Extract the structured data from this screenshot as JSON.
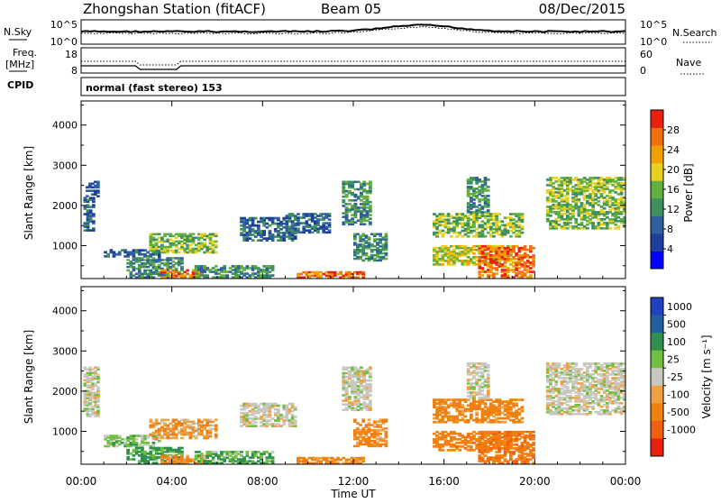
{
  "header": {
    "station": "Zhongshan Station (fitACF)",
    "beam": "Beam 05",
    "date": "08/Dec/2015"
  },
  "top_panel": {
    "left_label": "N.Sky",
    "left_ticks": [
      "10^5",
      "10^0"
    ],
    "right_label": "N.Search",
    "right_ticks": [
      "10^5",
      "10^0"
    ]
  },
  "freq_panel": {
    "left_label_1": "Freq.",
    "left_label_2": "[MHz]",
    "left_ticks": [
      "18",
      "8"
    ],
    "right_label": "Nave",
    "right_ticks": [
      "60",
      "0"
    ],
    "cpid_label": "CPID",
    "mode": "normal (fast stereo) 153"
  },
  "colors": {
    "power": [
      "#0000ff",
      "#1d3f9b",
      "#2f5f9f",
      "#3f8f5f",
      "#5fb040",
      "#e8d020",
      "#f0a000",
      "#f07010",
      "#e82010"
    ],
    "velocity_pos": [
      "#2040c0",
      "#2060a0",
      "#2f8f4f",
      "#70c040"
    ],
    "velocity_gray": "#c8c8c0",
    "velocity_neg": [
      "#f0a040",
      "#f08010",
      "#f06010",
      "#e82010"
    ]
  },
  "chart_data": [
    {
      "type": "heatmap",
      "name": "Power",
      "ylabel": "Slant Range [km]",
      "yticks": [
        1000,
        2000,
        3000,
        4000
      ],
      "ylim": [
        180,
        4600
      ],
      "xlim": [
        0,
        24
      ],
      "colorbar": {
        "label": "Power [dB]",
        "ticks": [
          4,
          8,
          12,
          16,
          20,
          24,
          28
        ],
        "range": [
          0,
          32
        ]
      },
      "regions": [
        {
          "t0": 0.1,
          "t1": 0.6,
          "r0": 1350,
          "r1": 2200,
          "level": 2
        },
        {
          "t0": 0.2,
          "t1": 0.8,
          "r0": 2200,
          "r1": 2600,
          "level": 1
        },
        {
          "t0": 1.0,
          "t1": 3.5,
          "r0": 700,
          "r1": 900,
          "level": 2
        },
        {
          "t0": 2.0,
          "t1": 4.5,
          "r0": 180,
          "r1": 700,
          "level": 3
        },
        {
          "t0": 3.5,
          "t1": 5.5,
          "r0": 180,
          "r1": 400,
          "level": 7
        },
        {
          "t0": 3.0,
          "t1": 6.0,
          "r0": 800,
          "r1": 1300,
          "level": 4
        },
        {
          "t0": 5.0,
          "t1": 8.5,
          "r0": 180,
          "r1": 500,
          "level": 3
        },
        {
          "t0": 7.0,
          "t1": 9.5,
          "r0": 1100,
          "r1": 1700,
          "level": 2
        },
        {
          "t0": 9.5,
          "t1": 12.5,
          "r0": 180,
          "r1": 350,
          "level": 7
        },
        {
          "t0": 9.0,
          "t1": 11.0,
          "r0": 1300,
          "r1": 1800,
          "level": 2
        },
        {
          "t0": 11.5,
          "t1": 12.8,
          "r0": 1500,
          "r1": 2600,
          "level": 3
        },
        {
          "t0": 12.0,
          "t1": 13.5,
          "r0": 600,
          "r1": 1300,
          "level": 3
        },
        {
          "t0": 15.5,
          "t1": 19.0,
          "r0": 500,
          "r1": 1000,
          "level": 5
        },
        {
          "t0": 17.5,
          "t1": 20.0,
          "r0": 180,
          "r1": 1000,
          "level": 7
        },
        {
          "t0": 15.5,
          "t1": 19.5,
          "r0": 1200,
          "r1": 1800,
          "level": 4
        },
        {
          "t0": 17.0,
          "t1": 18.0,
          "r0": 1800,
          "r1": 2700,
          "level": 3
        },
        {
          "t0": 20.5,
          "t1": 24.0,
          "r0": 1400,
          "r1": 2700,
          "level": 4
        }
      ]
    },
    {
      "type": "heatmap",
      "name": "Velocity",
      "ylabel": "Slant Range [km]",
      "yticks": [
        1000,
        2000,
        3000,
        4000
      ],
      "ylim": [
        180,
        4600
      ],
      "xlim": [
        0,
        24
      ],
      "xticks": [
        "00:00",
        "04:00",
        "08:00",
        "12:00",
        "16:00",
        "20:00",
        "00:00"
      ],
      "xlabel": "Time UT",
      "colorbar": {
        "label": "Velocity [m s⁻¹]",
        "ticks": [
          1000,
          500,
          100,
          25,
          -25,
          -100,
          -500,
          -1000
        ]
      },
      "regions": [
        {
          "t0": 0.1,
          "t1": 0.8,
          "r0": 1350,
          "r1": 2600,
          "vel": 0
        },
        {
          "t0": 1.0,
          "t1": 3.5,
          "r0": 600,
          "r1": 900,
          "vel": 50
        },
        {
          "t0": 2.0,
          "t1": 4.5,
          "r0": 180,
          "r1": 600,
          "vel": 150
        },
        {
          "t0": 3.5,
          "t1": 5.5,
          "r0": 180,
          "r1": 400,
          "vel": -150
        },
        {
          "t0": 3.0,
          "t1": 6.0,
          "r0": 800,
          "r1": 1300,
          "vel": -80
        },
        {
          "t0": 5.0,
          "t1": 8.5,
          "r0": 180,
          "r1": 500,
          "vel": 100
        },
        {
          "t0": 7.0,
          "t1": 9.5,
          "r0": 1100,
          "r1": 1700,
          "vel": 0
        },
        {
          "t0": 9.5,
          "t1": 12.5,
          "r0": 180,
          "r1": 350,
          "vel": -200
        },
        {
          "t0": 11.5,
          "t1": 12.8,
          "r0": 1500,
          "r1": 2600,
          "vel": 0
        },
        {
          "t0": 12.0,
          "t1": 13.5,
          "r0": 600,
          "r1": 1300,
          "vel": -150
        },
        {
          "t0": 15.5,
          "t1": 19.0,
          "r0": 500,
          "r1": 1000,
          "vel": -300
        },
        {
          "t0": 17.5,
          "t1": 20.0,
          "r0": 180,
          "r1": 1000,
          "vel": -400
        },
        {
          "t0": 15.5,
          "t1": 19.5,
          "r0": 1200,
          "r1": 1800,
          "vel": -200
        },
        {
          "t0": 17.0,
          "t1": 18.0,
          "r0": 1800,
          "r1": 2700,
          "vel": 0
        },
        {
          "t0": 20.5,
          "t1": 24.0,
          "r0": 1400,
          "r1": 2700,
          "vel": 0
        }
      ]
    }
  ]
}
